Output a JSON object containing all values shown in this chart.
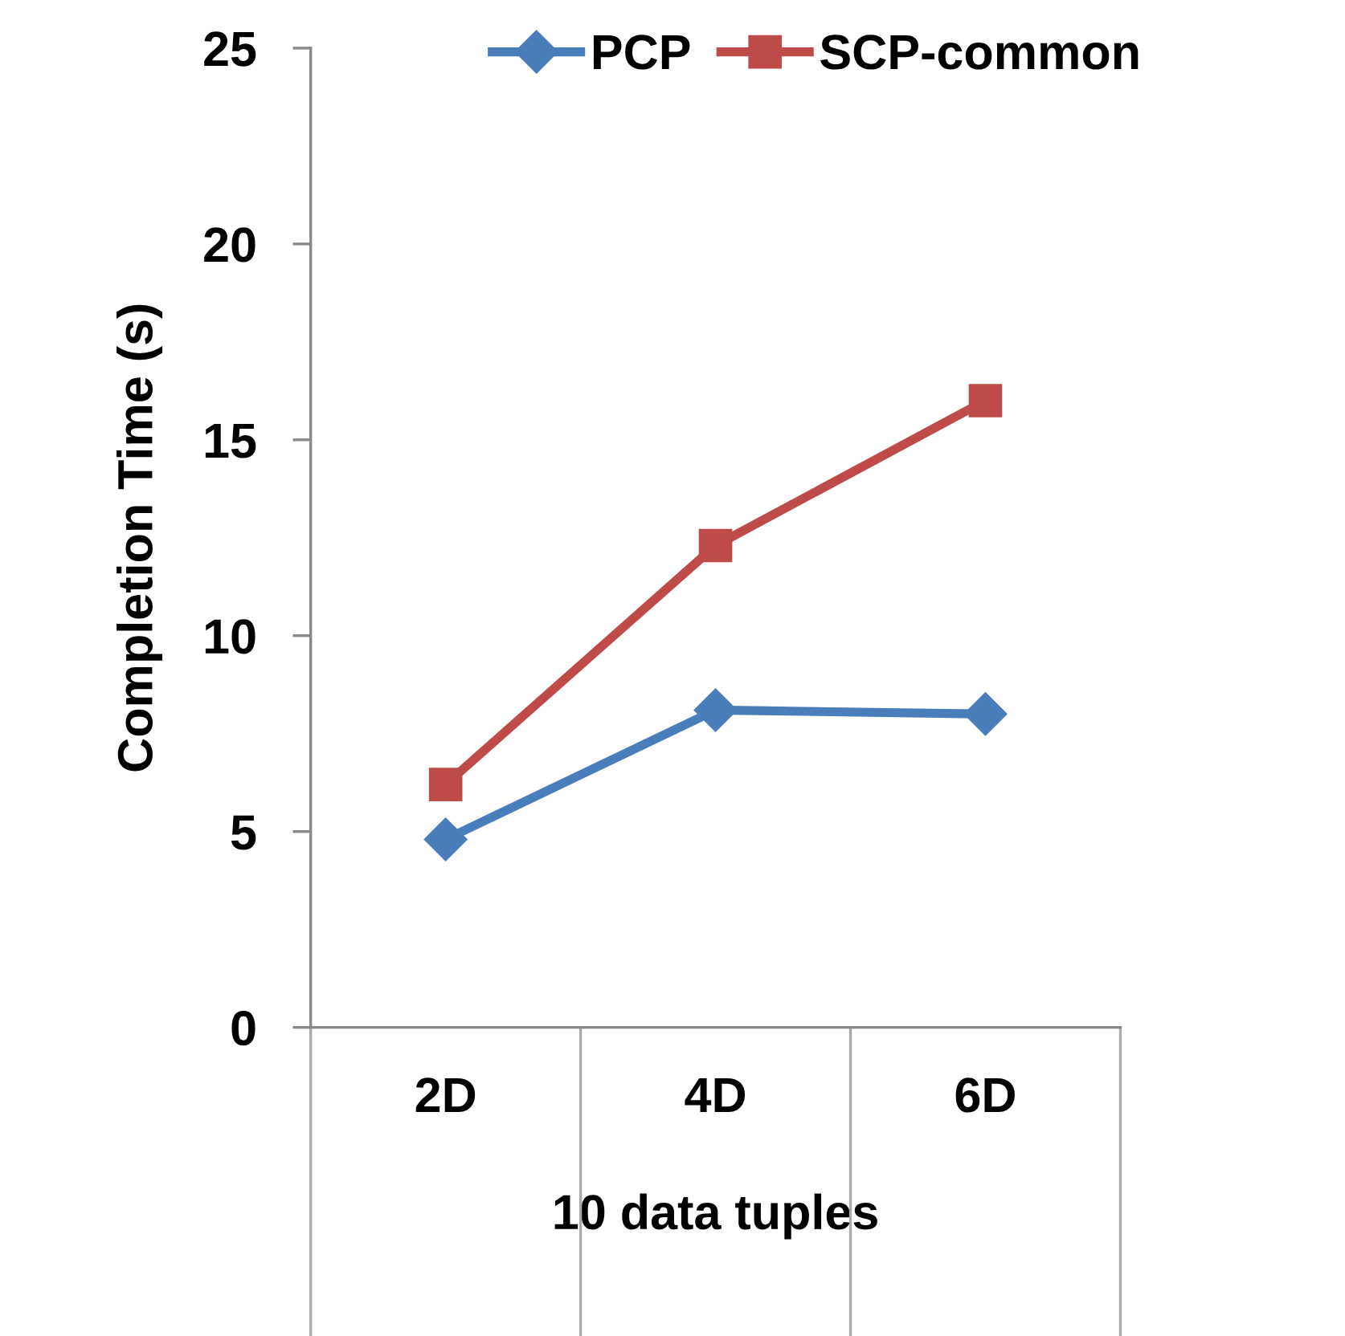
{
  "chart_data": {
    "type": "line",
    "ylabel": "Completion Time (s)",
    "xlabel": "10 data tuples",
    "categories": [
      "2D",
      "4D",
      "6D"
    ],
    "series": [
      {
        "name": "PCP",
        "color": "#4a7ebb",
        "marker": "diamond",
        "values": [
          4.8,
          8.1,
          8.0
        ]
      },
      {
        "name": "SCP-common",
        "color": "#be4b48",
        "marker": "square",
        "values": [
          6.2,
          12.3,
          16.0
        ]
      }
    ],
    "ylim": [
      0,
      25
    ],
    "yticks": [
      0,
      5,
      10,
      15,
      20,
      25
    ],
    "grid": false,
    "legend": "top right",
    "line_style": "solid"
  }
}
